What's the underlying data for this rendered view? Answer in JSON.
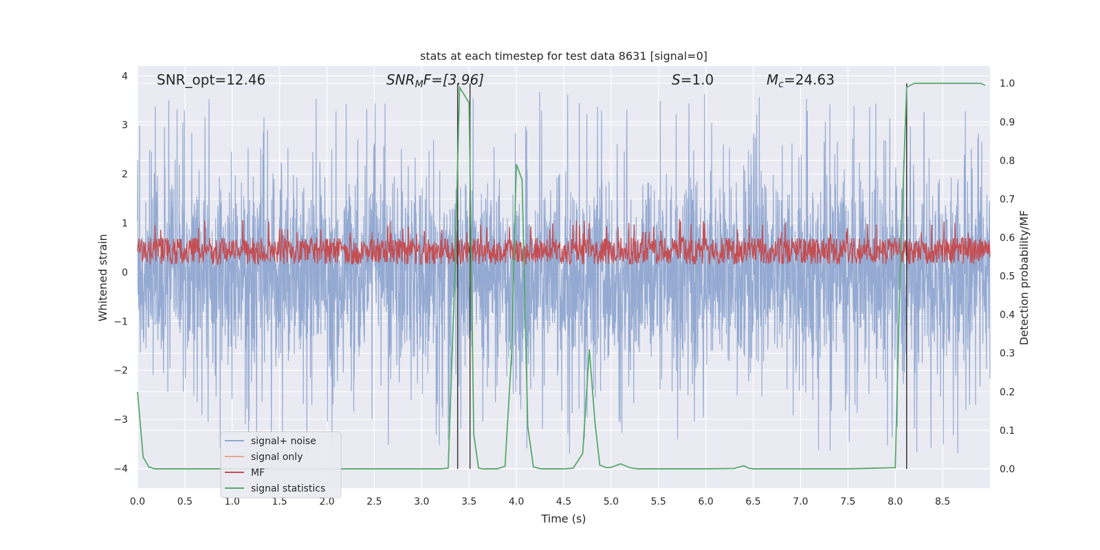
{
  "chart_data": {
    "type": "line",
    "title": "stats at each timestep for test data 8631 [signal=0]",
    "xlabel": "Time (s)",
    "ylabel": "Whitened strain",
    "ylabel_right": "Detection probability/MF",
    "xlim": [
      0.0,
      9.0
    ],
    "ylim": [
      -4.4,
      4.2
    ],
    "ylim_right": [
      -0.05,
      1.045
    ],
    "x_ticks": [
      "0.0",
      "0.5",
      "1.0",
      "1.5",
      "2.0",
      "2.5",
      "3.0",
      "3.5",
      "4.0",
      "4.5",
      "5.0",
      "5.5",
      "6.0",
      "6.5",
      "7.0",
      "7.5",
      "8.0",
      "8.5"
    ],
    "y_ticks": [
      "4",
      "3",
      "2",
      "1",
      "0",
      "−1",
      "−2",
      "−3",
      "−4"
    ],
    "y_ticks_right": [
      "1.0",
      "0.9",
      "0.8",
      "0.7",
      "0.6",
      "0.5",
      "0.4",
      "0.3",
      "0.2",
      "0.1",
      "0.0"
    ],
    "annotations": [
      {
        "text": "SNR_opt=12.46"
      },
      {
        "text": "SNR",
        "sub": "M",
        "rest": "F=[3.96]"
      },
      {
        "text": "S",
        "rest": "=1.0"
      },
      {
        "text": "M",
        "sub": "c",
        "rest": "=24.63"
      }
    ],
    "legend": {
      "location": "lower-left",
      "entries": [
        {
          "label": "signal+ noise",
          "color": "#8fa7d0"
        },
        {
          "label": "signal only",
          "color": "#e8a58a"
        },
        {
          "label": "MF",
          "color": "#c44e52"
        },
        {
          "label": "signal statistics",
          "color": "#55a868"
        }
      ]
    },
    "series": [
      {
        "name": "signal+ noise",
        "color": "#8fa7d0",
        "description": "whitened strain noise, approx. range -4 to 3.7"
      },
      {
        "name": "signal only",
        "color": "#e8a58a",
        "values": []
      },
      {
        "name": "MF",
        "color": "#c44e52",
        "axis": "right",
        "description": "matched filter output, approx. 0.52 to 0.65"
      },
      {
        "name": "signal statistics",
        "color": "#55a868",
        "axis": "right",
        "x": [
          0.0,
          0.06,
          0.12,
          0.18,
          0.25,
          0.5,
          1.0,
          1.5,
          2.0,
          2.5,
          3.0,
          3.2,
          3.28,
          3.35,
          3.4,
          3.45,
          3.5,
          3.55,
          3.6,
          3.65,
          3.72,
          3.8,
          3.88,
          3.95,
          4.0,
          4.06,
          4.12,
          4.18,
          4.26,
          4.3,
          4.4,
          4.5,
          4.6,
          4.7,
          4.77,
          4.83,
          4.88,
          4.95,
          5.0,
          5.1,
          5.2,
          5.28,
          5.4,
          5.6,
          6.0,
          6.3,
          6.4,
          6.45,
          6.5,
          6.6,
          7.0,
          7.5,
          8.0,
          8.05,
          8.12,
          8.2,
          8.25,
          8.5,
          8.8,
          8.9,
          8.95
        ],
        "values": [
          0.2,
          0.03,
          0.005,
          0.0,
          0.0,
          0.0,
          0.0,
          0.0,
          0.0,
          0.0,
          0.0,
          0.0,
          0.002,
          0.5,
          0.99,
          0.97,
          0.95,
          0.09,
          0.002,
          0.0,
          0.0,
          0.0,
          0.007,
          0.3,
          0.79,
          0.75,
          0.11,
          0.005,
          0.0,
          0.0,
          0.0,
          0.0,
          0.002,
          0.04,
          0.31,
          0.12,
          0.01,
          0.003,
          0.004,
          0.013,
          0.003,
          0.0,
          0.0,
          0.0,
          0.0,
          0.001,
          0.008,
          0.002,
          0.0,
          0.0,
          0.0,
          0.0,
          0.003,
          0.5,
          0.99,
          1.0,
          1.0,
          1.0,
          1.0,
          1.0,
          0.995
        ]
      }
    ],
    "vertical_lines_x": [
      3.38,
      3.51,
      8.12
    ]
  }
}
